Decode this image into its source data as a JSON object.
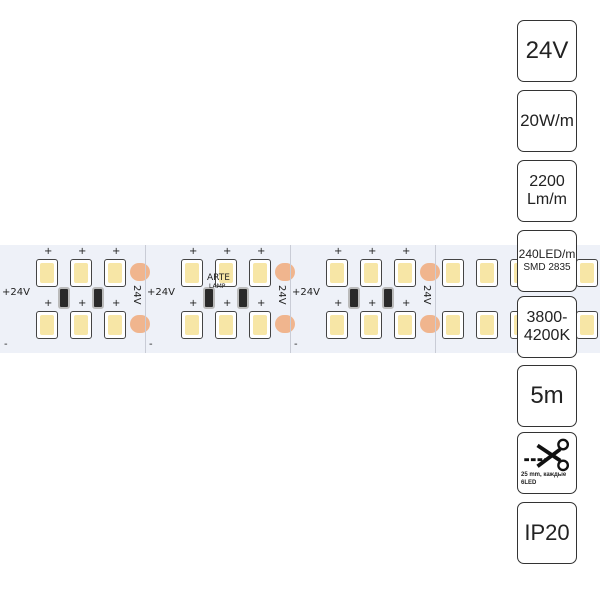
{
  "strip": {
    "plus_label": "+24V",
    "side_label": "24V",
    "brand_line1": "ARTE",
    "brand_line2": "LAMP",
    "plus": "+",
    "minus": "-",
    "led_color": "#f7e6a6",
    "pad_color": "#f0b58e"
  },
  "badges": [
    {
      "name": "voltage",
      "text": "24V"
    },
    {
      "name": "power",
      "text": "20W/m"
    },
    {
      "name": "luminous-flux",
      "line1": "2200",
      "line2": "Lm/m"
    },
    {
      "name": "led-density",
      "line1": "240LED/m",
      "line2": "SMD 2835"
    },
    {
      "name": "color-temperature",
      "line1": "3800-",
      "line2": "4200K"
    },
    {
      "name": "length",
      "text": "5m"
    },
    {
      "name": "cut",
      "icon": "scissors-icon",
      "text": "25 mm, каждые 6LED"
    },
    {
      "name": "ip-rating",
      "text": "IP20"
    }
  ]
}
